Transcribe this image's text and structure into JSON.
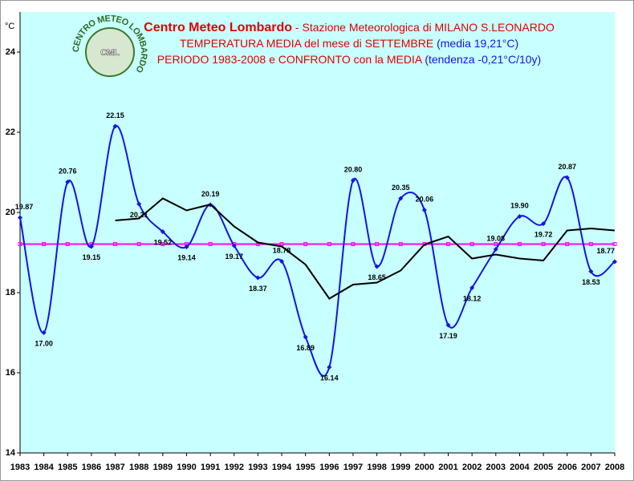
{
  "chart_data": {
    "type": "line",
    "title_parts": [
      "Centro Meteo Lombardo",
      " - Stazione Meteorologica di MILANO S.LEONARDO"
    ],
    "subtitle_1": [
      "TEMPERATURA MEDIA del mese di SETTEMBRE",
      "(media 19,21°C)"
    ],
    "subtitle_2": [
      "PERIODO 1983-2008 e CONFRONTO con la MEDIA",
      "(tendenza -0,21°C/10y)"
    ],
    "y_unit": "°C",
    "logo": {
      "ring": "CENTRO METEO LOMBARDO",
      "initials": "CML"
    },
    "categories": [
      "1983",
      "1984",
      "1985",
      "1986",
      "1987",
      "1988",
      "1989",
      "1990",
      "1991",
      "1992",
      "1993",
      "1994",
      "1995",
      "1996",
      "1997",
      "1998",
      "1999",
      "2000",
      "2001",
      "2002",
      "2003",
      "2004",
      "2005",
      "2006",
      "2007",
      "2008"
    ],
    "series": [
      {
        "color": "#1414e6",
        "smooth": true,
        "values": [
          19.87,
          17.0,
          20.76,
          19.15,
          22.15,
          20.21,
          19.52,
          19.14,
          20.19,
          19.17,
          18.37,
          18.78,
          16.89,
          16.14,
          20.8,
          18.65,
          20.35,
          20.06,
          17.19,
          18.12,
          19.08,
          19.9,
          19.72,
          20.87,
          18.53,
          18.77
        ],
        "value_labels": [
          "19.87",
          "17.00",
          "20.76",
          "19.15",
          "22.15",
          "20.21",
          "19.52",
          "19.14",
          "20.19",
          "19.17",
          "18.37",
          "18.78",
          "16.89",
          "16.14",
          "20.80",
          "18.65",
          "20.35",
          "20.06",
          "17.19",
          "18.12",
          "19.08",
          "19.90",
          "19.72",
          "20.87",
          "18.53",
          "18.77"
        ]
      },
      {
        "color": "#000000",
        "smooth": false,
        "values": [
          null,
          null,
          null,
          null,
          19.8,
          19.85,
          20.35,
          20.05,
          20.2,
          19.65,
          19.25,
          19.15,
          18.7,
          17.85,
          18.2,
          18.25,
          18.55,
          19.2,
          19.4,
          18.85,
          18.95,
          18.85,
          18.8,
          19.55,
          19.6,
          19.55
        ]
      }
    ],
    "mean": {
      "value": 19.21,
      "color": "#ff00ff"
    },
    "ylim": [
      14,
      25
    ],
    "yticks": [
      14,
      16,
      18,
      20,
      22,
      24
    ],
    "plot_color": "#c8ffff"
  }
}
